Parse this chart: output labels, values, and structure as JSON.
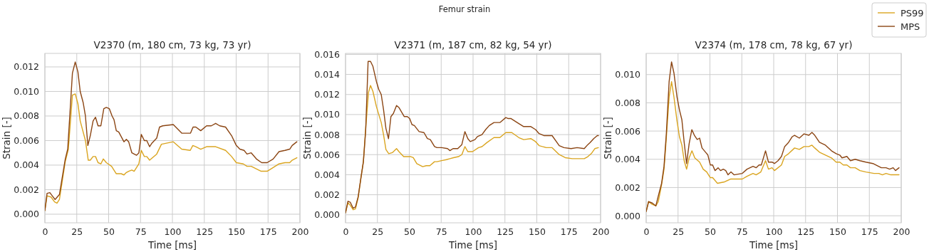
{
  "chart_data": [
    {
      "type": "line",
      "title": "V2370 (m, 180 cm, 73 kg, 73 yr)",
      "xlabel": "Time [ms]",
      "ylabel": "Strain [-]",
      "annotations": [
        "Femur strain"
      ],
      "xlim": [
        0,
        200
      ],
      "xticks": [
        0,
        25,
        50,
        75,
        100,
        125,
        150,
        175,
        200
      ],
      "ylim": [
        -0.0007,
        0.0131
      ],
      "yticks": [
        {
          "value": 0,
          "label": "0.000"
        },
        {
          "value": 0.002,
          "label": "0.002"
        },
        {
          "value": 0.004,
          "label": "0.004"
        },
        {
          "value": 0.006,
          "label": "0.006"
        },
        {
          "value": 0.008,
          "label": "0.008"
        },
        {
          "value": 0.01,
          "label": "0.010"
        },
        {
          "value": 0.012,
          "label": "0.012"
        }
      ],
      "grid": true,
      "legend": "top right",
      "series": [
        {
          "name": "PS99",
          "color": "#daa520",
          "x": [
            0,
            1.7,
            4.8,
            7.6,
            9.5,
            11.4,
            16,
            18.4,
            21.6,
            23.8,
            25.9,
            27.7,
            31.8,
            34,
            35.6,
            37.8,
            39.7,
            41.7,
            43.9,
            45.8,
            48.2,
            52.3,
            56,
            59.8,
            62,
            63.9,
            65.7,
            68.2,
            70,
            73.7,
            75.6,
            78,
            79.9,
            82.1,
            87.7,
            91.4,
            100.7,
            107.3,
            114,
            116,
            118.4,
            122.2,
            126.8,
            130.5,
            133.9,
            141.7,
            146.4,
            150.1,
            155.6,
            158.5,
            161.8,
            169.6,
            174.3,
            179,
            183.6,
            188.3,
            192,
            193.9,
            197.6
          ],
          "values": [
            0.0003,
            0.0015,
            0.0014,
            0.001,
            0.0009,
            0.0012,
            0.0043,
            0.0053,
            0.0097,
            0.0098,
            0.009,
            0.0076,
            0.006,
            0.0044,
            0.0044,
            0.0047,
            0.0047,
            0.0042,
            0.0041,
            0.0045,
            0.0042,
            0.0039,
            0.0033,
            0.0033,
            0.0032,
            0.0034,
            0.0035,
            0.0036,
            0.0035,
            0.0041,
            0.0052,
            0.0047,
            0.0047,
            0.0044,
            0.0049,
            0.0057,
            0.0059,
            0.0053,
            0.0052,
            0.0056,
            0.0055,
            0.0053,
            0.0055,
            0.0055,
            0.0055,
            0.0052,
            0.0047,
            0.0042,
            0.0041,
            0.0039,
            0.0039,
            0.0035,
            0.0035,
            0.0038,
            0.0041,
            0.0042,
            0.0042,
            0.0044,
            0.0046
          ]
        },
        {
          "name": "MPS",
          "color": "#8b4513",
          "x": [
            0,
            1.7,
            3.9,
            5.8,
            8,
            11.4,
            16,
            17.9,
            21.6,
            23.8,
            25.9,
            27.7,
            30,
            31.8,
            33.7,
            35.6,
            37.8,
            39.7,
            41.7,
            43.9,
            46.2,
            48.2,
            50.5,
            52.7,
            54.2,
            56,
            57.9,
            62,
            63.9,
            65.7,
            68.2,
            70,
            71.9,
            73.7,
            75.6,
            78,
            79.9,
            82.1,
            84,
            87.7,
            89.9,
            92.4,
            100.7,
            107.3,
            109.7,
            114.2,
            116.2,
            118.4,
            122.2,
            126.8,
            130.5,
            133.9,
            137.1,
            141.7,
            146.4,
            150.1,
            152.9,
            156.2,
            158.5,
            161.8,
            165.9,
            170,
            174.3,
            179,
            183.6,
            188.3,
            192,
            193.9,
            197.6
          ],
          "values": [
            0.0003,
            0.0017,
            0.00176,
            0.0015,
            0.0012,
            0.0016,
            0.0045,
            0.0053,
            0.0115,
            0.0124,
            0.0116,
            0.01,
            0.0091,
            0.008,
            0.0056,
            0.0064,
            0.0076,
            0.0079,
            0.0072,
            0.0072,
            0.0086,
            0.0087,
            0.0086,
            0.008,
            0.0077,
            0.0068,
            0.0067,
            0.0059,
            0.0061,
            0.0059,
            0.005,
            0.0049,
            0.0048,
            0.005,
            0.0065,
            0.006,
            0.006,
            0.0055,
            0.0058,
            0.0062,
            0.0071,
            0.0072,
            0.0073,
            0.0066,
            0.0066,
            0.0066,
            0.0071,
            0.0071,
            0.0068,
            0.0072,
            0.0072,
            0.0074,
            0.0072,
            0.0071,
            0.0064,
            0.0056,
            0.0053,
            0.0052,
            0.0049,
            0.005,
            0.0045,
            0.0042,
            0.0042,
            0.0045,
            0.0051,
            0.0052,
            0.0053,
            0.0056,
            0.0059
          ]
        }
      ]
    },
    {
      "type": "line",
      "title": "V2371 (m, 187 cm, 82 kg, 54 yr)",
      "xlabel": "Time [ms]",
      "ylabel": "Strain [-]",
      "xlim": [
        0,
        200
      ],
      "xticks": [
        0,
        25,
        50,
        75,
        100,
        125,
        150,
        175,
        200
      ],
      "ylim": [
        -0.0008,
        0.0161
      ],
      "yticks": [
        {
          "value": 0,
          "label": "0.000"
        },
        {
          "value": 0.002,
          "label": "0.002"
        },
        {
          "value": 0.004,
          "label": "0.004"
        },
        {
          "value": 0.006,
          "label": "0.006"
        },
        {
          "value": 0.008,
          "label": "0.008"
        },
        {
          "value": 0.01,
          "label": "0.010"
        },
        {
          "value": 0.012,
          "label": "0.012"
        },
        {
          "value": 0.014,
          "label": "0.014"
        },
        {
          "value": 0.016,
          "label": "0.016"
        }
      ],
      "grid": true,
      "series": [
        {
          "color": "#daa520",
          "x": [
            0,
            1.9,
            3.7,
            6,
            7.8,
            9.9,
            12.1,
            14,
            15.8,
            18,
            19.6,
            21.5,
            24.2,
            28,
            29.8,
            31.7,
            33.9,
            36.7,
            40,
            41.9,
            45.6,
            48.4,
            51.2,
            53.1,
            55.9,
            60.5,
            63.3,
            66.1,
            69.8,
            71.7,
            75.4,
            79.1,
            81.9,
            84.7,
            88.5,
            91.2,
            93.6,
            95.9,
            99.6,
            104.3,
            107,
            110.8,
            116.4,
            121,
            125.7,
            130.4,
            135.9,
            139.7,
            145.3,
            149,
            151.8,
            157.4,
            162,
            167.6,
            172.3,
            177.8,
            183.4,
            187.2,
            190,
            192.7,
            195.5,
            198.3
          ],
          "values": [
            0.0002,
            0.0012,
            0.00095,
            0.0005,
            0.0006,
            0.0017,
            0.0037,
            0.0053,
            0.0086,
            0.0122,
            0.0129,
            0.0123,
            0.0108,
            0.0092,
            0.008,
            0.0065,
            0.0061,
            0.0062,
            0.0066,
            0.0063,
            0.0058,
            0.0058,
            0.0058,
            0.0057,
            0.0051,
            0.0048,
            0.0049,
            0.0049,
            0.0053,
            0.0053,
            0.0054,
            0.0055,
            0.0056,
            0.0057,
            0.0058,
            0.006,
            0.0068,
            0.0063,
            0.0063,
            0.0067,
            0.0068,
            0.0072,
            0.0077,
            0.0077,
            0.0082,
            0.0082,
            0.0077,
            0.0075,
            0.0076,
            0.0073,
            0.0069,
            0.0067,
            0.0067,
            0.006,
            0.0057,
            0.0056,
            0.0056,
            0.0056,
            0.0058,
            0.0061,
            0.0066,
            0.0067
          ]
        },
        {
          "color": "#8b4513",
          "x": [
            0,
            1.9,
            3.7,
            6,
            7.8,
            9.9,
            12.1,
            14,
            15.8,
            17.7,
            19.6,
            21.5,
            24.2,
            26.1,
            28,
            29.8,
            31.7,
            33.7,
            35.6,
            37.5,
            40,
            41.9,
            46,
            48.4,
            50.3,
            52.1,
            54,
            57.7,
            61.5,
            64.2,
            66.5,
            69.8,
            71.7,
            75.4,
            80,
            81.9,
            84.3,
            88,
            91.2,
            93.6,
            95.9,
            97.8,
            101.5,
            103.4,
            107,
            109.9,
            112.7,
            116.4,
            121,
            125.7,
            127.6,
            129.8,
            135.9,
            139.7,
            142.1,
            145.3,
            149,
            151.8,
            155.5,
            159.2,
            162,
            167.6,
            171.3,
            176.9,
            181.6,
            187.2,
            190,
            191.8,
            194.6,
            197.4,
            198.3
          ],
          "values": [
            0.0002,
            0.00135,
            0.00125,
            0.00066,
            0.00078,
            0.0018,
            0.0037,
            0.0053,
            0.0084,
            0.0153,
            0.0153,
            0.0148,
            0.0133,
            0.0125,
            0.012,
            0.0105,
            0.0086,
            0.0076,
            0.0098,
            0.0101,
            0.0109,
            0.0107,
            0.0098,
            0.0098,
            0.0096,
            0.009,
            0.0089,
            0.0083,
            0.0082,
            0.0076,
            0.0075,
            0.0068,
            0.0067,
            0.0067,
            0.0066,
            0.0064,
            0.0066,
            0.0066,
            0.007,
            0.0083,
            0.0076,
            0.0073,
            0.0075,
            0.0078,
            0.008,
            0.0085,
            0.0089,
            0.0092,
            0.0092,
            0.0097,
            0.0096,
            0.0096,
            0.0091,
            0.0088,
            0.0088,
            0.0088,
            0.0085,
            0.0081,
            0.0079,
            0.0079,
            0.0079,
            0.0069,
            0.0067,
            0.0066,
            0.0067,
            0.0066,
            0.007,
            0.0072,
            0.0076,
            0.0079,
            0.0079
          ]
        }
      ]
    },
    {
      "type": "line",
      "title": "V2374 (m, 178 cm, 78 kg, 67 yr)",
      "xlabel": "Time [ms]",
      "ylabel": "Strain [-]",
      "xlim": [
        0,
        200
      ],
      "xticks": [
        0,
        25,
        50,
        75,
        100,
        125,
        150,
        175,
        200
      ],
      "ylim": [
        -0.0005,
        0.0115
      ],
      "yticks": [
        {
          "value": 0,
          "label": "0.000"
        },
        {
          "value": 0.002,
          "label": "0.002"
        },
        {
          "value": 0.004,
          "label": "0.004"
        },
        {
          "value": 0.006,
          "label": "0.006"
        },
        {
          "value": 0.008,
          "label": "0.008"
        },
        {
          "value": 0.01,
          "label": "0.010"
        }
      ],
      "grid": true,
      "series": [
        {
          "color": "#daa520",
          "x": [
            0,
            1.9,
            4.8,
            7.6,
            9.5,
            12.1,
            14,
            15.8,
            18,
            19.9,
            21.8,
            24.2,
            26.1,
            28,
            29.8,
            31.7,
            33.7,
            35.9,
            38.1,
            41.9,
            44.7,
            47.5,
            50.3,
            52.1,
            55.9,
            61.5,
            66.1,
            68,
            75.4,
            79.1,
            83.8,
            86.2,
            89.9,
            93.6,
            95.9,
            98.7,
            100.6,
            106.1,
            108.6,
            111.7,
            116.4,
            120.1,
            123.8,
            127.6,
            130,
            132.2,
            135.9,
            140.6,
            145.3,
            149,
            151.8,
            154.6,
            157.4,
            160.2,
            163.9,
            167.6,
            172.3,
            178.7,
            182.4,
            185.2,
            188.1,
            191.8,
            194.6,
            198.3
          ],
          "values": [
            0.0003,
            0.001,
            0.0008,
            0.0007,
            0.001,
            0.0022,
            0.0033,
            0.0055,
            0.0084,
            0.0095,
            0.0084,
            0.0067,
            0.0056,
            0.005,
            0.0039,
            0.0033,
            0.0041,
            0.0046,
            0.0041,
            0.0038,
            0.0033,
            0.0031,
            0.0027,
            0.0027,
            0.0023,
            0.0024,
            0.0026,
            0.0026,
            0.0026,
            0.0028,
            0.003,
            0.0029,
            0.0031,
            0.0039,
            0.0033,
            0.0034,
            0.0032,
            0.0036,
            0.0042,
            0.0044,
            0.0048,
            0.0047,
            0.0049,
            0.0049,
            0.005,
            0.0048,
            0.0045,
            0.0043,
            0.0041,
            0.0038,
            0.0038,
            0.0036,
            0.0036,
            0.0034,
            0.0034,
            0.0032,
            0.0031,
            0.003,
            0.003,
            0.0029,
            0.003,
            0.0029,
            0.0029,
            0.0029
          ]
        },
        {
          "color": "#8b4513",
          "x": [
            0,
            1.9,
            4.8,
            7.6,
            9.5,
            12.1,
            14,
            15.8,
            18,
            19.9,
            21.8,
            24.2,
            26.1,
            28,
            29.8,
            31.7,
            33.7,
            35.8,
            37.8,
            40,
            41.9,
            43.8,
            46.6,
            48.4,
            50.3,
            52.1,
            54,
            56.4,
            58.3,
            60.5,
            62.4,
            64.2,
            66.5,
            68.9,
            75.4,
            79.1,
            83.8,
            86.2,
            88.5,
            90.3,
            93.6,
            95.9,
            98.7,
            100.6,
            103.4,
            106.1,
            108.6,
            111.7,
            114.5,
            116.4,
            120.1,
            123.8,
            127.6,
            130,
            132.2,
            135.9,
            140.6,
            145.3,
            149,
            151.8,
            153.6,
            157.4,
            160.2,
            163.9,
            167.6,
            172.3,
            177.8,
            184.4,
            188.1,
            190.9,
            193.7,
            195.5,
            198.3
          ],
          "values": [
            0.0003,
            0.001,
            0.0009,
            0.0007,
            0.0014,
            0.0023,
            0.0035,
            0.0058,
            0.0095,
            0.0109,
            0.0101,
            0.0084,
            0.0075,
            0.0068,
            0.0052,
            0.0037,
            0.0051,
            0.0061,
            0.0057,
            0.0054,
            0.0055,
            0.0048,
            0.0045,
            0.0043,
            0.0036,
            0.0036,
            0.0032,
            0.0034,
            0.0032,
            0.0033,
            0.0032,
            0.0029,
            0.0031,
            0.0029,
            0.003,
            0.0033,
            0.0035,
            0.0034,
            0.0036,
            0.0036,
            0.0046,
            0.0038,
            0.0038,
            0.0037,
            0.0039,
            0.0042,
            0.0049,
            0.0052,
            0.0056,
            0.0057,
            0.0055,
            0.0058,
            0.0057,
            0.0059,
            0.0057,
            0.0052,
            0.005,
            0.0046,
            0.0044,
            0.0043,
            0.0041,
            0.0042,
            0.0039,
            0.004,
            0.0039,
            0.0038,
            0.0037,
            0.0034,
            0.0034,
            0.0033,
            0.0034,
            0.0032,
            0.0034
          ]
        }
      ]
    }
  ]
}
